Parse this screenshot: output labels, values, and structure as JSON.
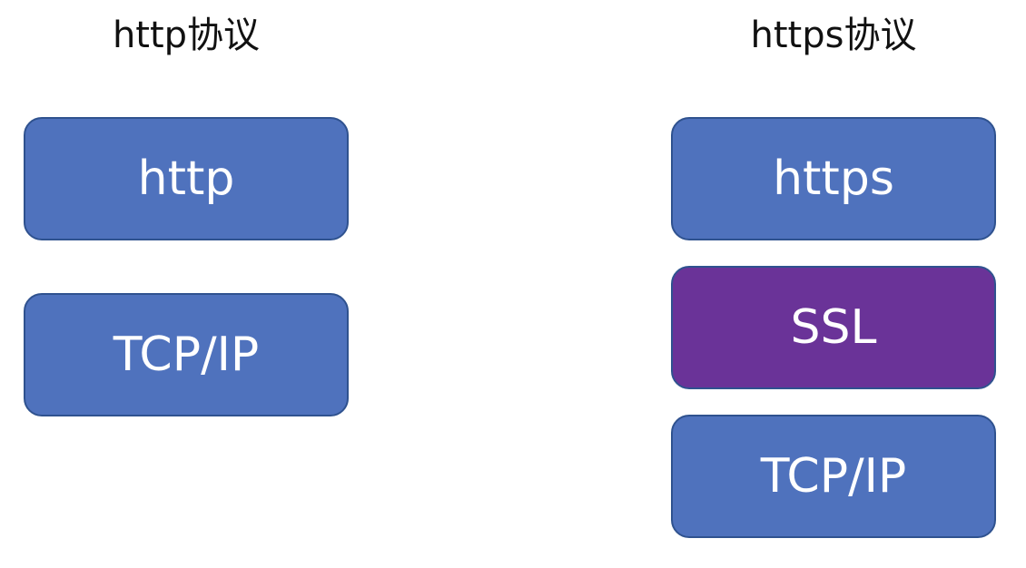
{
  "left_stack": {
    "title": "http协议",
    "layers": [
      {
        "label": "http",
        "color": "#4f72bd"
      },
      {
        "label": "TCP/IP",
        "color": "#4f72bd"
      }
    ]
  },
  "right_stack": {
    "title": "https协议",
    "layers": [
      {
        "label": "https",
        "color": "#4f72bd"
      },
      {
        "label": "SSL",
        "color": "#6a3398"
      },
      {
        "label": "TCP/IP",
        "color": "#4f72bd"
      }
    ]
  }
}
